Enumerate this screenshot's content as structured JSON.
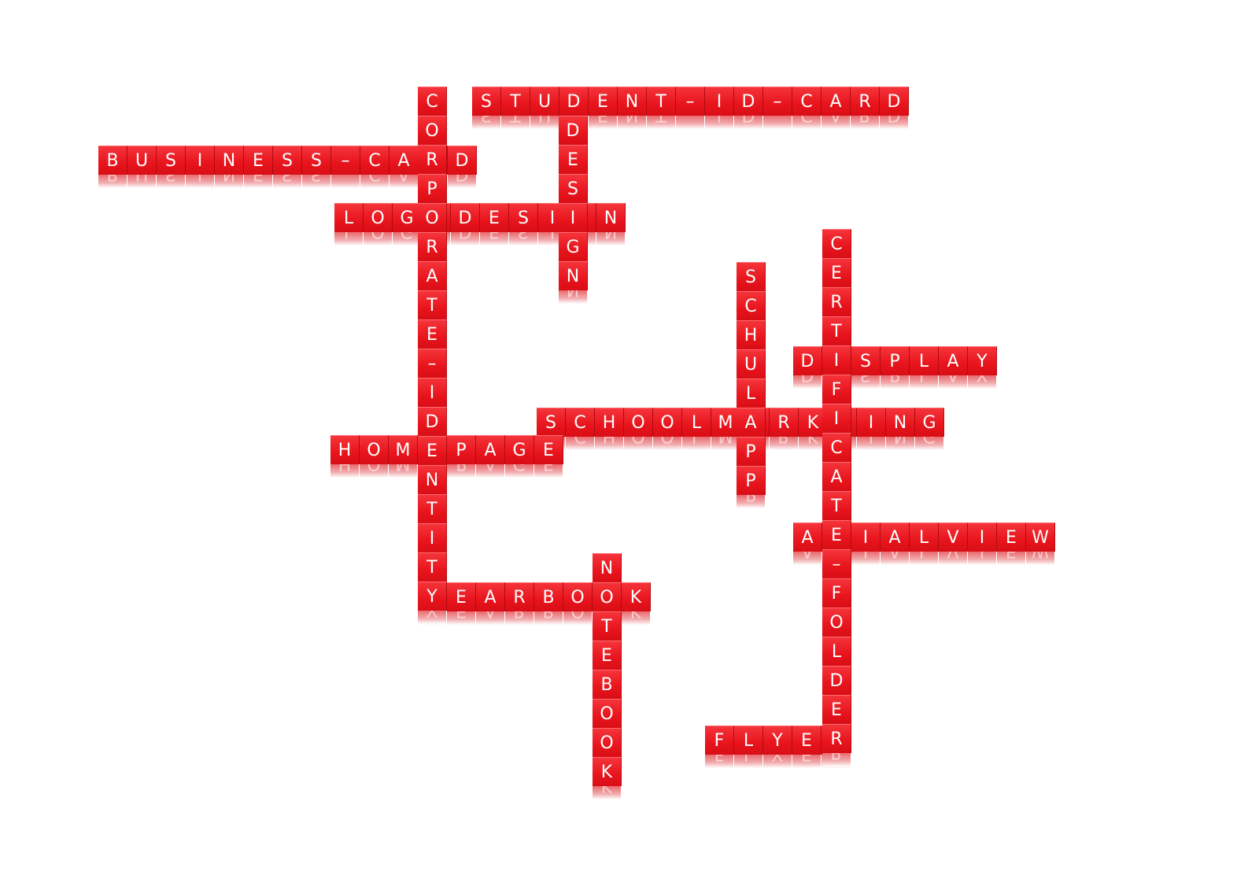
{
  "colors": {
    "tile": "#e8141c",
    "letter": "#ffffff",
    "background": "#ffffff"
  },
  "words": [
    {
      "id": "student-id-card",
      "text": "STUDENT-ID-CARD",
      "dir": "across"
    },
    {
      "id": "business-card",
      "text": "BUSINESS-CARD",
      "dir": "across"
    },
    {
      "id": "logodesign",
      "text": "LOGODESIGN",
      "dir": "across"
    },
    {
      "id": "display",
      "text": "DISPLAY",
      "dir": "across"
    },
    {
      "id": "schoolmarkting",
      "text": "SCHOOLMARKTING",
      "dir": "across"
    },
    {
      "id": "homepage",
      "text": "HOMEPAGE",
      "dir": "across"
    },
    {
      "id": "arialview",
      "text": "ARIALVIEW",
      "dir": "across"
    },
    {
      "id": "yearbook",
      "text": "YEARBOOK",
      "dir": "across"
    },
    {
      "id": "flyer",
      "text": "FLYER",
      "dir": "across"
    },
    {
      "id": "corporate-identity",
      "text": "CORPORATE-IDENTITY",
      "dir": "down"
    },
    {
      "id": "design",
      "text": "DESIGN",
      "dir": "down"
    },
    {
      "id": "schulapp",
      "text": "SCHULAPP",
      "dir": "down"
    },
    {
      "id": "certificate-folder",
      "text": "CERTIFICATE-FOLDER",
      "dir": "down"
    },
    {
      "id": "notebook",
      "text": "NOTEBOOK",
      "dir": "down"
    }
  ]
}
